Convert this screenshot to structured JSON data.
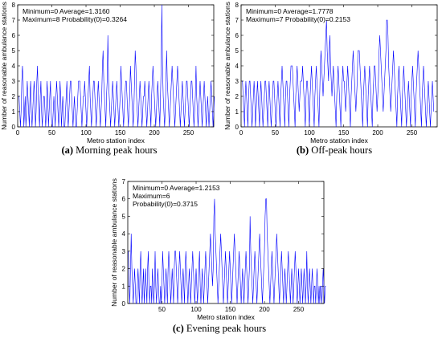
{
  "chart_data": [
    {
      "type": "line",
      "subfig_label": "(a)",
      "caption": "Morning peak hours",
      "xlabel": "Metro station index",
      "ylabel": "Number of reasonable ambulance stations",
      "xlim": [
        0,
        287
      ],
      "ylim": [
        0,
        8
      ],
      "xticks": [
        0,
        50,
        100,
        150,
        200,
        250
      ],
      "yticks": [
        0,
        1,
        2,
        3,
        4,
        5,
        6,
        7,
        8
      ],
      "stats": [
        "Minimum=0   Average=1.3160",
        "Maximum=8   Probability(0)=0.3264"
      ],
      "color": "#0000ff",
      "y": [
        2,
        2,
        1,
        0,
        1,
        3,
        4,
        3,
        0,
        1,
        2,
        0,
        1,
        3,
        2,
        1,
        0,
        2,
        3,
        1,
        0,
        1,
        2,
        3,
        2,
        0,
        1,
        3,
        4,
        2,
        1,
        0,
        2,
        3,
        1,
        0,
        1,
        2,
        2,
        1,
        0,
        1,
        3,
        2,
        0,
        1,
        2,
        3,
        1,
        0,
        0,
        1,
        2,
        1,
        0,
        2,
        3,
        2,
        1,
        0,
        1,
        3,
        2,
        0,
        1,
        2,
        1,
        0,
        0,
        1,
        2,
        3,
        1,
        0,
        1,
        2,
        3,
        3,
        2,
        1,
        0,
        1,
        2,
        1,
        0,
        0,
        1,
        2,
        3,
        3,
        3,
        2,
        1,
        0,
        1,
        2,
        2,
        3,
        2,
        1,
        0,
        1,
        2,
        3,
        4,
        2,
        1,
        0,
        1,
        2,
        3,
        3,
        2,
        1,
        0,
        1,
        2,
        3,
        2,
        1,
        0,
        1,
        2,
        4,
        5,
        3,
        2,
        1,
        0,
        2,
        3,
        6,
        3,
        2,
        1,
        0,
        1,
        2,
        3,
        2,
        1,
        0,
        1,
        2,
        3,
        2,
        1,
        0,
        1,
        2,
        4,
        3,
        2,
        1,
        0,
        1,
        2,
        3,
        3,
        2,
        1,
        0,
        1,
        2,
        4,
        3,
        2,
        1,
        0,
        1,
        3,
        5,
        4,
        2,
        1,
        0,
        1,
        2,
        3,
        2,
        1,
        0,
        1,
        2,
        2,
        3,
        2,
        1,
        0,
        1,
        2,
        3,
        2,
        1,
        0,
        2,
        3,
        4,
        3,
        2,
        1,
        0,
        1,
        2,
        3,
        2,
        1,
        0,
        2,
        4,
        8,
        4,
        2,
        1,
        0,
        1,
        3,
        5,
        3,
        2,
        1,
        0,
        1,
        2,
        3,
        4,
        3,
        2,
        1,
        0,
        1,
        2,
        3,
        4,
        3,
        2,
        1,
        0,
        1,
        2,
        3,
        2,
        1,
        0,
        1,
        2,
        3,
        3,
        2,
        1,
        0,
        1,
        2,
        3,
        3,
        2,
        1,
        0,
        1,
        2,
        4,
        2,
        1,
        0,
        1,
        2,
        3,
        2,
        1,
        0,
        1,
        2,
        3,
        2,
        1,
        0,
        1,
        2,
        1,
        0,
        1,
        2,
        3,
        2,
        1,
        0,
        1,
        2
      ]
    },
    {
      "type": "line",
      "subfig_label": "(b)",
      "caption": "Off-peak hours",
      "xlabel": "Metro station index",
      "ylabel": "Number of reasonable ambulance stations",
      "xlim": [
        0,
        287
      ],
      "ylim": [
        0,
        8
      ],
      "xticks": [
        0,
        50,
        100,
        150,
        200,
        250
      ],
      "yticks": [
        0,
        1,
        2,
        3,
        4,
        5,
        6,
        7,
        8
      ],
      "stats": [
        "Minimum=0   Average=1.7778",
        "Maximum=7   Probability(0)=0.2153"
      ],
      "color": "#0000ff",
      "y": [
        3,
        3,
        2,
        1,
        0,
        2,
        3,
        2,
        1,
        0,
        2,
        3,
        3,
        2,
        1,
        0,
        1,
        2,
        3,
        2,
        0,
        1,
        2,
        3,
        2,
        1,
        0,
        2,
        3,
        2,
        1,
        0,
        1,
        2,
        3,
        3,
        2,
        1,
        0,
        2,
        3,
        2,
        1,
        0,
        1,
        2,
        3,
        3,
        2,
        1,
        0,
        1,
        2,
        3,
        2,
        1,
        0,
        2,
        3,
        4,
        3,
        2,
        1,
        0,
        2,
        3,
        3,
        2,
        1,
        0,
        2,
        3,
        4,
        4,
        4,
        3,
        2,
        1,
        0,
        2,
        3,
        4,
        3,
        2,
        1,
        2,
        3,
        3,
        3,
        4,
        3,
        2,
        1,
        0,
        2,
        3,
        3,
        2,
        1,
        0,
        2,
        3,
        4,
        3,
        2,
        1,
        0,
        2,
        3,
        4,
        3,
        2,
        1,
        0,
        2,
        4,
        5,
        4,
        3,
        2,
        3,
        4,
        5,
        6,
        7,
        5,
        4,
        3,
        5,
        6,
        4,
        3,
        2,
        3,
        4,
        3,
        2,
        1,
        0,
        2,
        3,
        4,
        3,
        2,
        1,
        0,
        2,
        3,
        4,
        3,
        3,
        2,
        1,
        2,
        3,
        4,
        3,
        2,
        1,
        0,
        2,
        3,
        4,
        5,
        4,
        3,
        2,
        1,
        2,
        3,
        5,
        5,
        5,
        4,
        3,
        2,
        1,
        0,
        2,
        3,
        4,
        3,
        2,
        1,
        0,
        2,
        3,
        4,
        3,
        2,
        1,
        0,
        2,
        3,
        4,
        4,
        3,
        2,
        1,
        2,
        3,
        5,
        6,
        5,
        4,
        3,
        2,
        1,
        2,
        3,
        4,
        5,
        7,
        7,
        6,
        4,
        3,
        2,
        1,
        2,
        3,
        4,
        5,
        4,
        3,
        2,
        1,
        0,
        2,
        3,
        4,
        3,
        2,
        1,
        0,
        2,
        3,
        4,
        3,
        2,
        1,
        0,
        1,
        2,
        3,
        2,
        1,
        0,
        2,
        3,
        4,
        3,
        2,
        1,
        0,
        2,
        3,
        4,
        5,
        4,
        3,
        2,
        1,
        0,
        2,
        3,
        4,
        3,
        2,
        1,
        0,
        1,
        2,
        3,
        2,
        1,
        0,
        1,
        2,
        3,
        2,
        1
      ]
    },
    {
      "type": "line",
      "subfig_label": "(c)",
      "caption": "Evening peak hours",
      "xlabel": "Metro station index",
      "ylabel": "Number of reasonable ambulance stations",
      "xlim": [
        0,
        287
      ],
      "ylim": [
        0,
        7
      ],
      "xticks": [
        50,
        100,
        150,
        200,
        250
      ],
      "yticks": [
        0,
        1,
        2,
        3,
        4,
        5,
        6,
        7
      ],
      "stats": [
        "Minimum=0   Average=1.2153",
        "Maximum=6",
        "Probability(0)=0.3715"
      ],
      "color": "#0000ff",
      "y": [
        3,
        1,
        0,
        2,
        4,
        2,
        1,
        0,
        1,
        2,
        1,
        0,
        0,
        1,
        2,
        1,
        0,
        2,
        3,
        1,
        0,
        1,
        2,
        0,
        1,
        2,
        1,
        0,
        2,
        3,
        1,
        0,
        1,
        1,
        0,
        2,
        1,
        0,
        1,
        3,
        1,
        0,
        1,
        2,
        1,
        0,
        0,
        1,
        0,
        1,
        3,
        2,
        1,
        0,
        1,
        2,
        1,
        0,
        2,
        3,
        2,
        1,
        0,
        1,
        2,
        1,
        0,
        2,
        3,
        3,
        2,
        1,
        0,
        1,
        2,
        3,
        2,
        1,
        0,
        1,
        2,
        1,
        0,
        2,
        3,
        2,
        1,
        0,
        1,
        2,
        1,
        0,
        1,
        2,
        3,
        2,
        1,
        0,
        1,
        2,
        1,
        0,
        1,
        2,
        3,
        1,
        0,
        1,
        2,
        1,
        0,
        1,
        2,
        3,
        2,
        1,
        0,
        1,
        2,
        3,
        4,
        3,
        2,
        1,
        2,
        5,
        6,
        4,
        3,
        2,
        1,
        0,
        1,
        2,
        3,
        4,
        3,
        2,
        1,
        0,
        1,
        2,
        3,
        2,
        1,
        0,
        1,
        2,
        3,
        2,
        1,
        0,
        1,
        2,
        3,
        4,
        3,
        2,
        1,
        0,
        1,
        2,
        3,
        2,
        1,
        0,
        1,
        2,
        1,
        0,
        1,
        2,
        3,
        2,
        1,
        0,
        1,
        2,
        5,
        3,
        2,
        1,
        0,
        1,
        2,
        3,
        2,
        1,
        0,
        1,
        2,
        3,
        4,
        3,
        2,
        1,
        0,
        1,
        2,
        3,
        5,
        6,
        6,
        4,
        3,
        2,
        1,
        0,
        1,
        2,
        3,
        2,
        1,
        0,
        1,
        2,
        3,
        4,
        3,
        2,
        1,
        0,
        1,
        2,
        3,
        2,
        1,
        0,
        1,
        2,
        1,
        0,
        1,
        2,
        3,
        2,
        1,
        0,
        1,
        2,
        1,
        0,
        1,
        2,
        3,
        2,
        1,
        0,
        1,
        2,
        1,
        0,
        1,
        2,
        1,
        0,
        1,
        2,
        1,
        0,
        1,
        3,
        1,
        0,
        1,
        2,
        1,
        0,
        1,
        2,
        1,
        0,
        1,
        1,
        0,
        1,
        2,
        1,
        0,
        1,
        0,
        1,
        1,
        0,
        1,
        2,
        1,
        0,
        1,
        1
      ]
    }
  ]
}
